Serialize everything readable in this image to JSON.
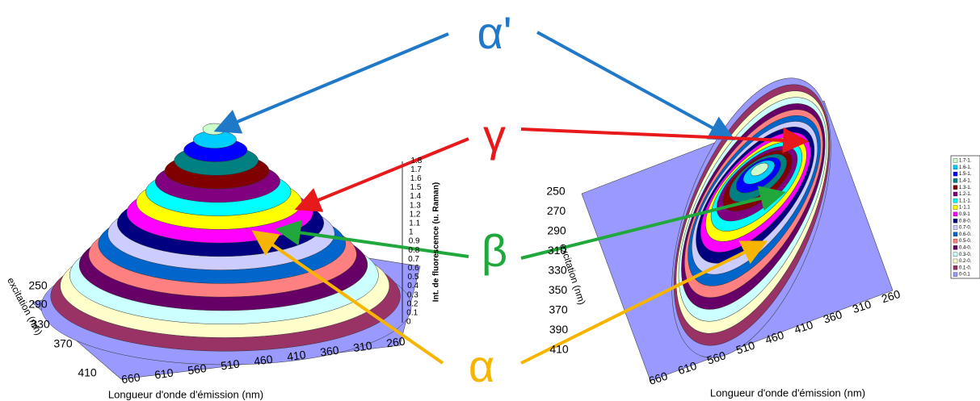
{
  "annotations": {
    "alpha_prime": "α'",
    "gamma": "γ",
    "beta": "β",
    "alpha": "α"
  },
  "left_plot": {
    "z_label": "Int. de fluorescence (u. Raman)",
    "z_ticks": [
      "0",
      "0.1",
      "0.2",
      "0.3",
      "0.4",
      "0.5",
      "0.6",
      "0.7",
      "0.8",
      "0.9",
      "1",
      "1.1",
      "1.2",
      "1.3",
      "1.4",
      "1.5",
      "1.6",
      "1.7",
      "1.8"
    ],
    "excitation_label": "excitation (nm)",
    "excitation_ticks": [
      "250",
      "290",
      "330",
      "370",
      "410"
    ],
    "emission_label": "Longueur d'onde d'émission (nm)",
    "emission_ticks": [
      "660",
      "610",
      "560",
      "510",
      "460",
      "410",
      "360",
      "310",
      "260"
    ]
  },
  "right_plot": {
    "excitation_label": "excitation (nm)",
    "excitation_ticks": [
      "250",
      "270",
      "290",
      "310",
      "330",
      "350",
      "370",
      "390",
      "410"
    ],
    "emission_label": "Longueur d'onde d'émission (nm)",
    "emission_ticks": [
      "660",
      "610",
      "560",
      "510",
      "460",
      "410",
      "360",
      "310",
      "260"
    ]
  },
  "legend": [
    {
      "label": "1.7-1.",
      "color": "#ccffcc"
    },
    {
      "label": "1.6-1.",
      "color": "#00ccff"
    },
    {
      "label": "1.5-1.",
      "color": "#0000ff"
    },
    {
      "label": "1.4-1.",
      "color": "#008080"
    },
    {
      "label": "1.3-1.",
      "color": "#800000"
    },
    {
      "label": "1.2-1.",
      "color": "#800080"
    },
    {
      "label": "1.1-1.",
      "color": "#00ffff"
    },
    {
      "label": "1-1.1",
      "color": "#ffff00"
    },
    {
      "label": "0.9-1",
      "color": "#ff00ff"
    },
    {
      "label": "0.8-0.",
      "color": "#000080"
    },
    {
      "label": "0.7-0.",
      "color": "#ccccff"
    },
    {
      "label": "0.6-0.",
      "color": "#0066cc"
    },
    {
      "label": "0.5-0.",
      "color": "#ff8080"
    },
    {
      "label": "0.4-0.",
      "color": "#660066"
    },
    {
      "label": "0.3-0.",
      "color": "#ccffff"
    },
    {
      "label": "0.2-0.",
      "color": "#ffffcc"
    },
    {
      "label": "0.1-0.",
      "color": "#993366"
    },
    {
      "label": "0-0.1",
      "color": "#9999ff"
    }
  ]
}
